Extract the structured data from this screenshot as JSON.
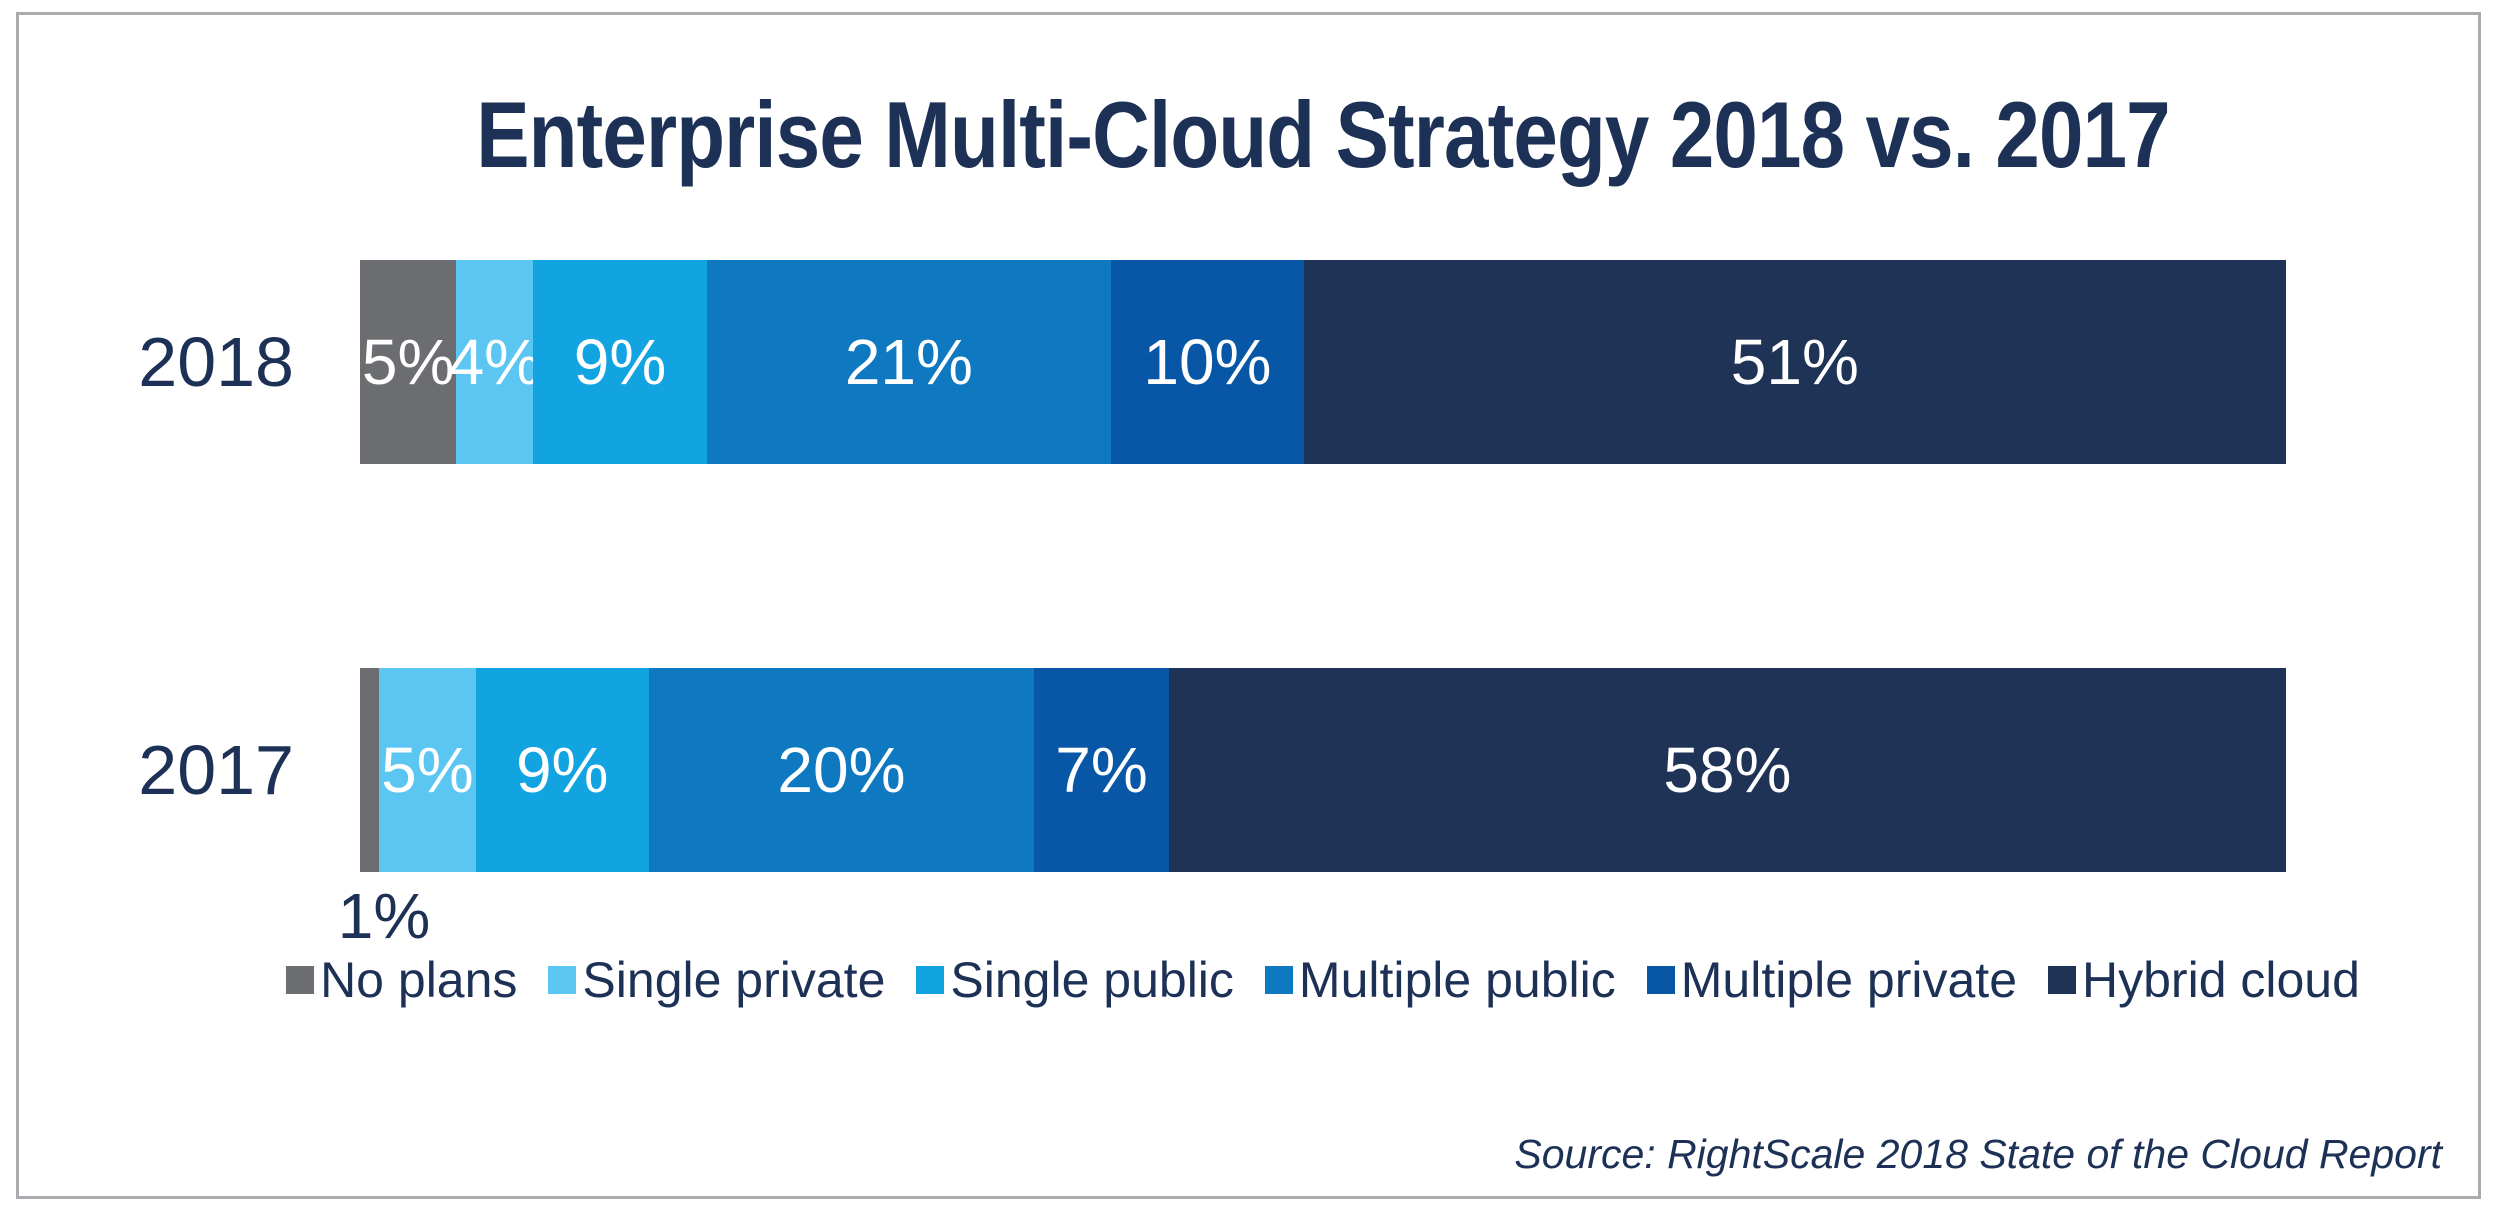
{
  "title": "Enterprise Multi-Cloud Strategy 2018 vs. 2017",
  "source_note": "Source: RightScale 2018 State of the Cloud Report",
  "colors": {
    "text_navy": "#1d3156",
    "border_gray": "#a9abae",
    "bar_label_white": "#ffffff",
    "palette": [
      "#6c6d70",
      "#5cc6f2",
      "#12a3e1",
      "#0e79c1",
      "#0857a6",
      "#1f3357"
    ]
  },
  "chart_data": {
    "type": "bar",
    "orientation": "horizontal-stacked",
    "title": "Enterprise Multi-Cloud Strategy 2018 vs. 2017",
    "xlabel": "",
    "ylabel": "",
    "xlim": [
      0,
      100
    ],
    "grid": false,
    "legend_position": "bottom",
    "categories": [
      "No plans",
      "Single private",
      "Single public",
      "Multiple public",
      "Multiple private",
      "Hybrid cloud"
    ],
    "series": [
      {
        "name": "2018",
        "values": [
          5,
          4,
          9,
          21,
          10,
          51
        ],
        "value_labels": [
          "5%",
          "4%",
          "9%",
          "21%",
          "10%",
          "51%"
        ],
        "outside_label": null
      },
      {
        "name": "2017",
        "values": [
          1,
          5,
          9,
          20,
          7,
          58
        ],
        "value_labels": [
          "",
          "5%",
          "9%",
          "20%",
          "7%",
          "58%"
        ],
        "outside_label": {
          "text": "1%",
          "segment_index": 0
        }
      }
    ]
  }
}
